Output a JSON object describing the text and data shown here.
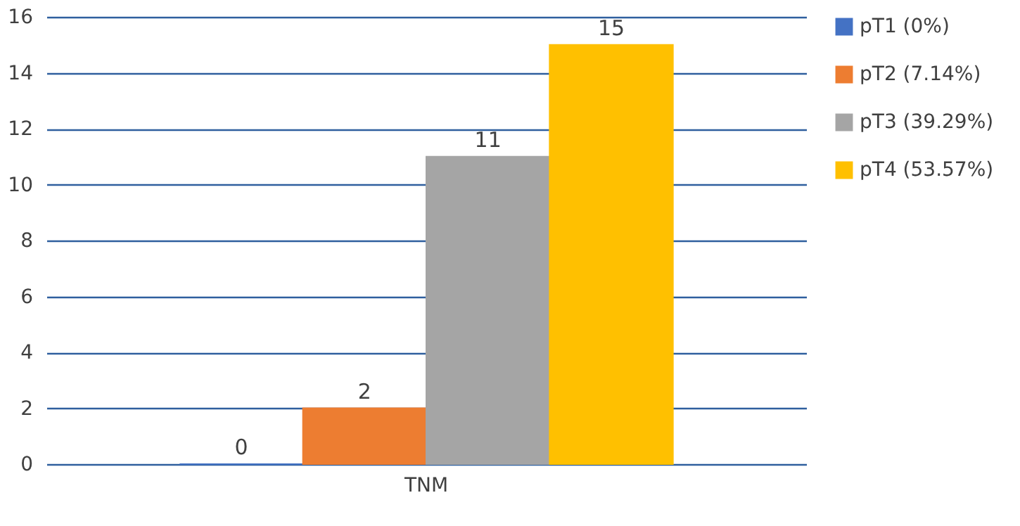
{
  "chart_data": {
    "type": "bar",
    "categories": [
      "TNM"
    ],
    "series": [
      {
        "name": "pT1 (0%)",
        "color": "#4472c4",
        "values": [
          0
        ]
      },
      {
        "name": "pT2 (7.14%)",
        "color": "#ed7d31",
        "values": [
          2
        ]
      },
      {
        "name": "pT3 (39.29%)",
        "color": "#a5a5a5",
        "values": [
          11
        ]
      },
      {
        "name": "pT4 (53.57%)",
        "color": "#ffc000",
        "values": [
          15
        ]
      }
    ],
    "ylim": [
      0,
      16
    ],
    "yticks": [
      0,
      2,
      4,
      6,
      8,
      10,
      12,
      14,
      16
    ],
    "grid": "y",
    "legend": "right",
    "data_labels": true
  }
}
